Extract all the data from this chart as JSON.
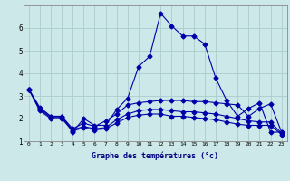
{
  "xlabel": "Graphe des températures (°c)",
  "x_ticks": [
    0,
    1,
    2,
    3,
    4,
    5,
    6,
    7,
    8,
    9,
    10,
    11,
    12,
    13,
    14,
    15,
    16,
    17,
    18,
    19,
    20,
    21,
    22,
    23
  ],
  "xlim": [
    -0.5,
    23.5
  ],
  "ylim": [
    1,
    7
  ],
  "y_ticks": [
    1,
    2,
    3,
    4,
    5,
    6
  ],
  "background_color": "#cce8e8",
  "line_color": "#0000aa",
  "grid_color": "#aacccc",
  "line1_x": [
    0,
    1,
    2,
    3,
    4,
    5,
    6,
    7,
    8,
    9,
    10,
    11,
    12,
    13,
    14,
    15,
    16,
    17,
    18,
    19,
    20,
    21,
    22,
    23
  ],
  "line1_y": [
    3.3,
    2.5,
    2.1,
    2.1,
    1.4,
    2.0,
    1.7,
    1.7,
    2.4,
    2.9,
    4.3,
    4.75,
    6.65,
    6.1,
    5.65,
    5.65,
    5.3,
    3.8,
    2.8,
    2.1,
    2.45,
    2.7,
    1.4,
    1.4
  ],
  "line2_x": [
    0,
    1,
    2,
    3,
    4,
    5,
    6,
    7,
    8,
    9,
    10,
    11,
    12,
    13,
    14,
    15,
    16,
    17,
    18,
    19,
    20,
    21,
    22,
    23
  ],
  "line2_y": [
    3.3,
    2.45,
    2.1,
    2.1,
    1.55,
    1.8,
    1.65,
    1.9,
    2.2,
    2.6,
    2.7,
    2.75,
    2.8,
    2.8,
    2.8,
    2.75,
    2.75,
    2.7,
    2.65,
    2.6,
    2.1,
    2.45,
    2.65,
    1.4
  ],
  "line3_x": [
    0,
    1,
    2,
    3,
    4,
    5,
    6,
    7,
    8,
    9,
    10,
    11,
    12,
    13,
    14,
    15,
    16,
    17,
    18,
    19,
    20,
    21,
    22,
    23
  ],
  "line3_y": [
    3.3,
    2.4,
    2.05,
    2.05,
    1.5,
    1.65,
    1.55,
    1.6,
    1.95,
    2.2,
    2.35,
    2.4,
    2.4,
    2.35,
    2.3,
    2.3,
    2.25,
    2.2,
    2.1,
    2.0,
    1.9,
    1.85,
    1.85,
    1.35
  ],
  "line4_x": [
    0,
    1,
    2,
    3,
    4,
    5,
    6,
    7,
    8,
    9,
    10,
    11,
    12,
    13,
    14,
    15,
    16,
    17,
    18,
    19,
    20,
    21,
    22,
    23
  ],
  "line4_y": [
    3.3,
    2.35,
    2.0,
    2.0,
    1.45,
    1.6,
    1.5,
    1.55,
    1.8,
    2.05,
    2.15,
    2.2,
    2.2,
    2.1,
    2.1,
    2.05,
    2.0,
    1.95,
    1.85,
    1.75,
    1.7,
    1.7,
    1.7,
    1.3
  ]
}
